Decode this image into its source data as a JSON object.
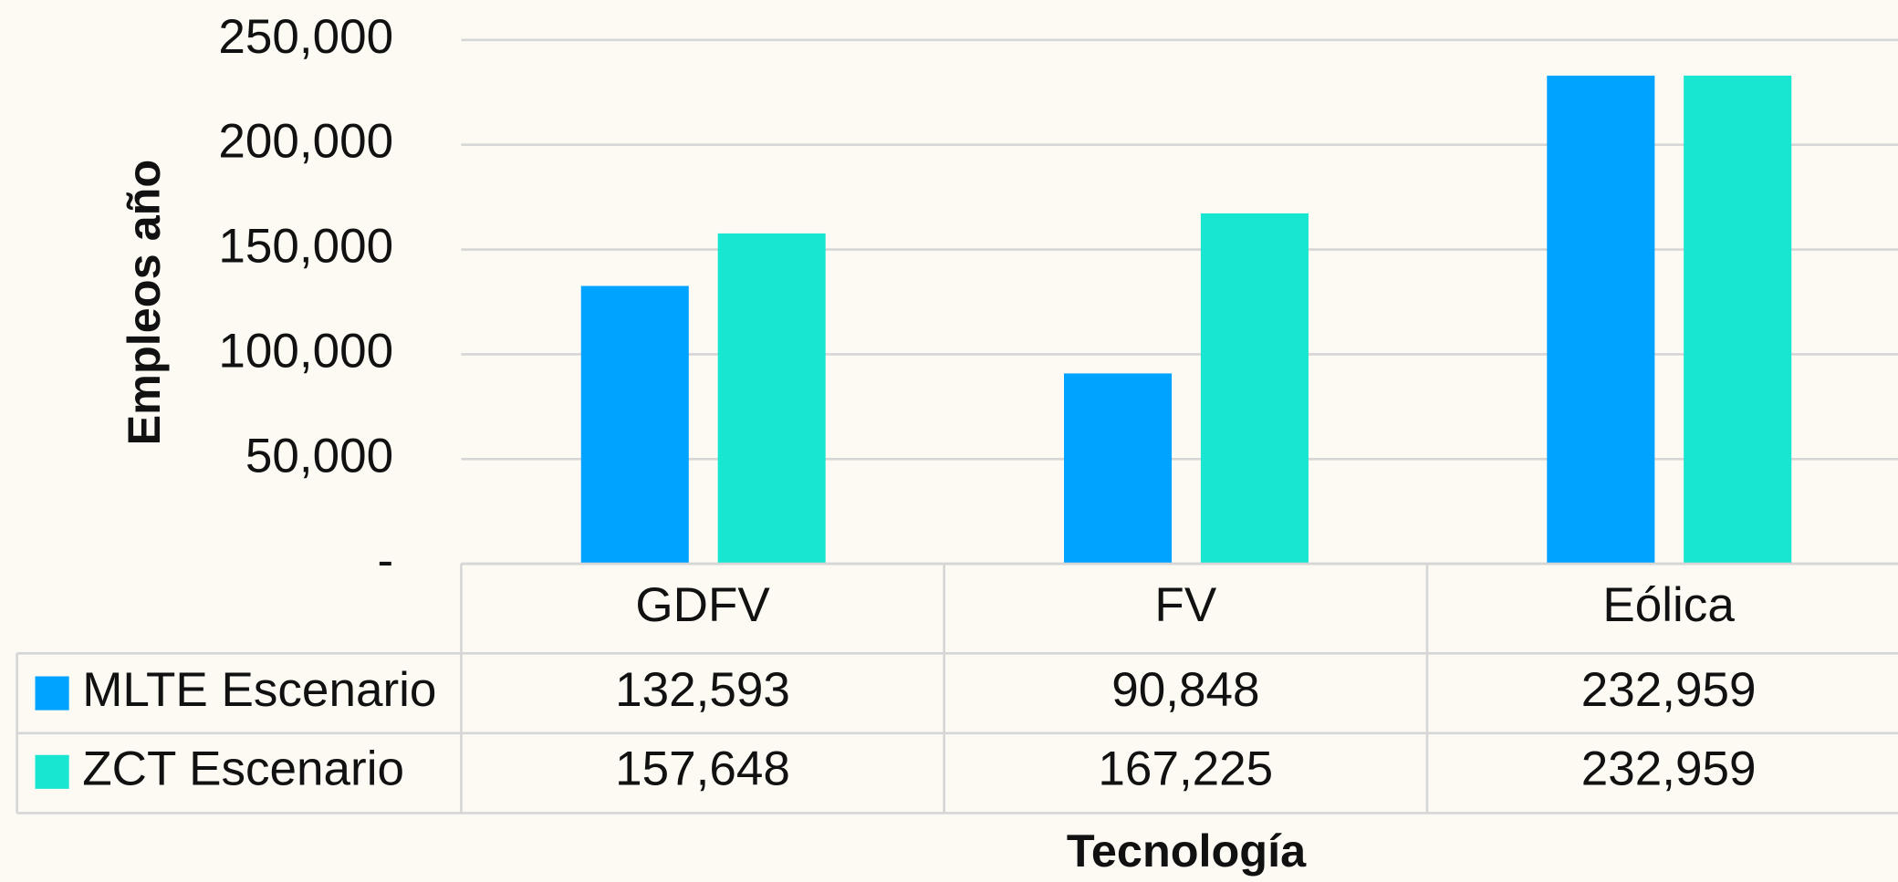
{
  "chart_data": {
    "type": "bar",
    "x_label": "Tecnología",
    "y_label": "Empleos año",
    "categories": [
      "GDFV",
      "FV",
      "Eólica"
    ],
    "series": [
      {
        "name": "MLTE Escenario",
        "color": "#00a3ff",
        "values": [
          132593,
          90848,
          232959
        ],
        "value_labels": [
          "132,593",
          "90,848",
          "232,959"
        ]
      },
      {
        "name": "ZCT Escenario",
        "color": "#19e6d0",
        "values": [
          157648,
          167225,
          232959
        ],
        "value_labels": [
          "157,648",
          "167,225",
          "232,959"
        ]
      }
    ],
    "ylim": [
      0,
      250000
    ],
    "yticks": [
      {
        "value": 0,
        "label": "-"
      },
      {
        "value": 50000,
        "label": "50,000"
      },
      {
        "value": 100000,
        "label": "100,000"
      },
      {
        "value": 150000,
        "label": "150,000"
      },
      {
        "value": 200000,
        "label": "200,000"
      },
      {
        "value": 250000,
        "label": "250,000"
      }
    ],
    "grid": true,
    "data_table": true
  }
}
